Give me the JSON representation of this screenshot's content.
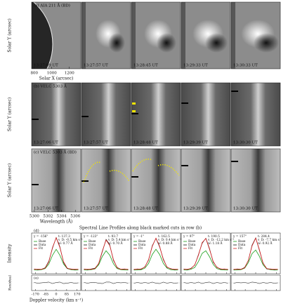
{
  "image_rows": [
    {
      "label": "(a) AIA 211 Å (BD)",
      "times": [
        "13:27:09 UT",
        "13:27:57 UT",
        "13:28:45 UT",
        "13:29:33 UT",
        "13:30:33 UT"
      ],
      "y_label": "Solar Y (arcsec)",
      "x_label": "Solar X (arcsec)",
      "xlim": [
        770,
        1330
      ],
      "xticks": [
        800,
        1000,
        1200
      ]
    },
    {
      "label": "(b) VELC 5303 Å",
      "times": [
        "13:27:06 UT",
        "13:27:57 UT",
        "13:28:48 UT",
        "13:29:39 UT",
        "13:30:30 UT"
      ],
      "y_label": "Solar Y (arcsec)"
    },
    {
      "label": "(c) VELC 5303 Å (BD)",
      "times": [
        "13:27:06 UT",
        "13:27:57 UT",
        "13:28:48 UT",
        "13:29:39 UT",
        "13:30:30 UT"
      ],
      "y_label": "Solar Y (arcsec)",
      "x_label": "Wavelength (Å)",
      "xlim": [
        5299.6,
        5306.8
      ],
      "xticks": [
        5300,
        5302,
        5304,
        5306
      ]
    }
  ],
  "profiles_title": "Spectral Line Profiles along black marked cuts in row (b)",
  "profile_axes": {
    "d_label": "(d)",
    "e_label": "(e)",
    "y_label": "Intensity",
    "residual_label": "Residual",
    "x_label": "Doppler velocity (km s⁻¹)",
    "x": [
      -180,
      -150,
      -120,
      -90,
      -60,
      -30,
      0,
      30,
      60,
      90,
      120,
      150,
      180
    ],
    "xlim": [
      -200,
      200
    ],
    "xticks": [
      -170,
      -85,
      0,
      85,
      170
    ],
    "ylim": [
      0,
      1.1
    ],
    "residual_ylim": [
      -0.2,
      0.2
    ]
  },
  "chart_data": [
    {
      "type": "line",
      "position": "y = -156\"",
      "t": "t: 137.3",
      "vd": "v_D: -0.5 km s⁻¹",
      "w": "w: 0.77 Å",
      "series": [
        {
          "name": "Base",
          "color": "#1a9e1a",
          "values": [
            0.1,
            0.1,
            0.11,
            0.14,
            0.26,
            0.5,
            0.66,
            0.5,
            0.26,
            0.14,
            0.11,
            0.1,
            0.1
          ]
        },
        {
          "name": "Data",
          "color": "#111111",
          "values": [
            0.13,
            0.11,
            0.12,
            0.16,
            0.34,
            0.69,
            0.98,
            0.73,
            0.3,
            0.14,
            0.13,
            0.11,
            0.12
          ]
        },
        {
          "name": "Fit",
          "color": "#d62020",
          "values": [
            0.12,
            0.12,
            0.12,
            0.15,
            0.32,
            0.71,
            0.97,
            0.71,
            0.32,
            0.15,
            0.12,
            0.12,
            0.12
          ]
        }
      ],
      "residual": [
        0.01,
        -0.01,
        0,
        0.01,
        0.02,
        -0.02,
        0.01,
        0.02,
        -0.02,
        -0.01,
        0.01,
        -0.01,
        0
      ]
    },
    {
      "type": "line",
      "position": "y = -123\"",
      "t": "t: 93.7",
      "vd": "v_D: 5.4 km s⁻¹",
      "w": "w: 0.70 Å",
      "series": [
        {
          "name": "Base",
          "color": "#1a9e1a",
          "values": [
            0.1,
            0.1,
            0.11,
            0.13,
            0.24,
            0.47,
            0.62,
            0.5,
            0.27,
            0.14,
            0.11,
            0.1,
            0.1
          ]
        },
        {
          "name": "Data",
          "color": "#111111",
          "values": [
            0.13,
            0.11,
            0.13,
            0.15,
            0.27,
            0.6,
            0.93,
            0.78,
            0.36,
            0.17,
            0.12,
            0.13,
            0.11
          ]
        },
        {
          "name": "Fit",
          "color": "#d62020",
          "values": [
            0.12,
            0.12,
            0.12,
            0.14,
            0.28,
            0.62,
            0.91,
            0.76,
            0.38,
            0.16,
            0.12,
            0.12,
            0.12
          ]
        }
      ],
      "residual": [
        0.01,
        -0.01,
        0.01,
        0.01,
        -0.01,
        -0.02,
        0.02,
        0.02,
        -0.02,
        0.01,
        0,
        0.01,
        -0.01
      ]
    },
    {
      "type": "line",
      "position": "y = -1\"",
      "t": "t: 162.5",
      "vd": "v_D: 0.4 km s⁻¹",
      "w": "w: 0.88 Å",
      "series": [
        {
          "name": "Base",
          "color": "#1a9e1a",
          "values": [
            0.1,
            0.1,
            0.11,
            0.15,
            0.28,
            0.52,
            0.66,
            0.52,
            0.28,
            0.15,
            0.11,
            0.1,
            0.1
          ]
        },
        {
          "name": "Data",
          "color": "#111111",
          "values": [
            0.11,
            0.13,
            0.12,
            0.19,
            0.37,
            0.76,
            0.95,
            0.72,
            0.4,
            0.17,
            0.14,
            0.11,
            0.12
          ]
        },
        {
          "name": "Fit",
          "color": "#d62020",
          "values": [
            0.12,
            0.12,
            0.13,
            0.18,
            0.38,
            0.74,
            0.96,
            0.74,
            0.38,
            0.18,
            0.13,
            0.12,
            0.12
          ]
        }
      ],
      "residual": [
        -0.01,
        0.01,
        -0.01,
        0.01,
        -0.01,
        0.02,
        -0.01,
        -0.02,
        0.02,
        -0.01,
        0.01,
        -0.01,
        0
      ]
    },
    {
      "type": "line",
      "position": "y = 97\"",
      "t": "t: 190.5",
      "vd": "v_D: -12.2 km s⁻¹",
      "w": "w: 1.18 Å",
      "series": [
        {
          "name": "Base",
          "color": "#1a9e1a",
          "values": [
            0.1,
            0.1,
            0.12,
            0.17,
            0.33,
            0.55,
            0.62,
            0.46,
            0.25,
            0.14,
            0.11,
            0.1,
            0.1
          ]
        },
        {
          "name": "Data",
          "color": "#111111",
          "values": [
            0.13,
            0.11,
            0.15,
            0.23,
            0.52,
            0.82,
            0.96,
            0.68,
            0.31,
            0.18,
            0.12,
            0.13,
            0.11
          ]
        },
        {
          "name": "Fit",
          "color": "#d62020",
          "values": [
            0.12,
            0.12,
            0.14,
            0.24,
            0.5,
            0.84,
            0.95,
            0.66,
            0.33,
            0.17,
            0.13,
            0.12,
            0.12
          ]
        }
      ],
      "residual": [
        0.01,
        -0.01,
        0.01,
        -0.01,
        0.02,
        -0.02,
        0.01,
        0.02,
        -0.02,
        0.01,
        -0.01,
        0.01,
        -0.01
      ]
    },
    {
      "type": "line",
      "position": "y = 157\"",
      "t": "t: 284.4",
      "vd": "v_D: -7.7 km s⁻¹",
      "w": "w: 0.92 Å",
      "series": [
        {
          "name": "Base",
          "color": "#1a9e1a",
          "values": [
            0.1,
            0.1,
            0.11,
            0.15,
            0.3,
            0.54,
            0.64,
            0.47,
            0.24,
            0.13,
            0.11,
            0.1,
            0.1
          ]
        },
        {
          "name": "Data",
          "color": "#111111",
          "values": [
            0.11,
            0.13,
            0.12,
            0.17,
            0.35,
            0.77,
            0.97,
            0.63,
            0.29,
            0.13,
            0.13,
            0.11,
            0.12
          ]
        },
        {
          "name": "Fit",
          "color": "#d62020",
          "values": [
            0.12,
            0.12,
            0.12,
            0.16,
            0.36,
            0.75,
            0.96,
            0.65,
            0.28,
            0.14,
            0.12,
            0.12,
            0.12
          ]
        }
      ],
      "residual": [
        -0.01,
        0.01,
        0,
        0.01,
        -0.01,
        0.02,
        0.01,
        -0.02,
        0.01,
        -0.01,
        0.01,
        -0.01,
        0
      ]
    }
  ]
}
